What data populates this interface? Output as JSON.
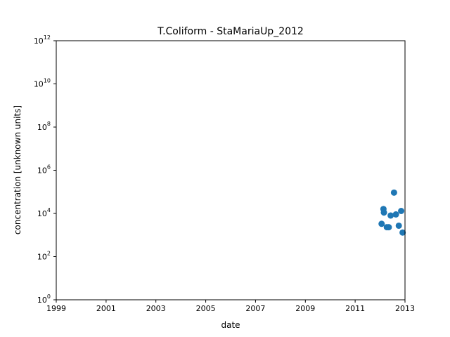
{
  "chart_data": {
    "type": "scatter",
    "title": "T.Coliform - StaMariaUp_2012",
    "xlabel": "date",
    "ylabel": "concentration [unknown units]",
    "xlim": [
      "1999-01-01",
      "2013-01-01"
    ],
    "ylim": [
      1,
      1000000000000
    ],
    "yscale": "log",
    "x_ticks": [
      "1999",
      "2001",
      "2003",
      "2005",
      "2007",
      "2009",
      "2011",
      "2013"
    ],
    "y_ticks": [
      {
        "base": "10",
        "exp": "0"
      },
      {
        "base": "10",
        "exp": "2"
      },
      {
        "base": "10",
        "exp": "4"
      },
      {
        "base": "10",
        "exp": "6"
      },
      {
        "base": "10",
        "exp": "8"
      },
      {
        "base": "10",
        "exp": "10"
      },
      {
        "base": "10",
        "exp": "12"
      }
    ],
    "grid": false,
    "marker_color": "#1f77b4",
    "points": [
      {
        "x": "2012-01-24",
        "y": 3300
      },
      {
        "x": "2012-02-20",
        "y": 16000
      },
      {
        "x": "2012-02-27",
        "y": 11000
      },
      {
        "x": "2012-04-10",
        "y": 2300
      },
      {
        "x": "2012-05-08",
        "y": 2300
      },
      {
        "x": "2012-06-05",
        "y": 8000
      },
      {
        "x": "2012-07-24",
        "y": 92000
      },
      {
        "x": "2012-08-21",
        "y": 9000
      },
      {
        "x": "2012-10-02",
        "y": 2700
      },
      {
        "x": "2012-11-06",
        "y": 13000
      },
      {
        "x": "2012-11-27",
        "y": 1300
      }
    ]
  }
}
